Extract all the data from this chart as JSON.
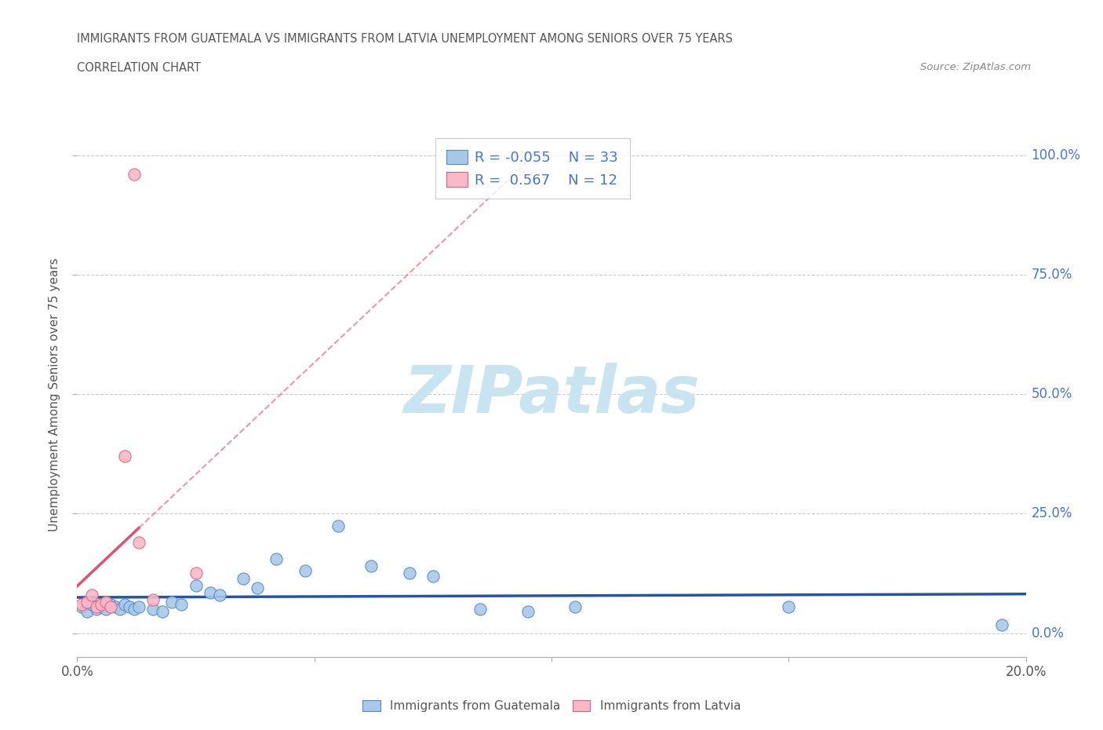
{
  "title_line1": "IMMIGRANTS FROM GUATEMALA VS IMMIGRANTS FROM LATVIA UNEMPLOYMENT AMONG SENIORS OVER 75 YEARS",
  "title_line2": "CORRELATION CHART",
  "source_text": "Source: ZipAtlas.com",
  "ylabel": "Unemployment Among Seniors over 75 years",
  "xlim": [
    0.0,
    0.2
  ],
  "ylim": [
    -0.05,
    1.05
  ],
  "xticks": [
    0.0,
    0.05,
    0.1,
    0.15,
    0.2
  ],
  "xtick_labels": [
    "0.0%",
    "",
    "",
    "",
    "20.0%"
  ],
  "ytick_labels_right": [
    "0.0%",
    "25.0%",
    "50.0%",
    "75.0%",
    "100.0%"
  ],
  "yticks": [
    0.0,
    0.25,
    0.5,
    0.75,
    1.0
  ],
  "guatemala_color": "#a8c8e8",
  "latvia_color": "#f8b8c8",
  "guatemala_edge": "#5588cc",
  "latvia_edge": "#e06080",
  "trendline_guatemala_color": "#2255aa",
  "trendline_latvia_color": "#e05070",
  "R_guatemala": -0.055,
  "N_guatemala": 33,
  "R_latvia": 0.567,
  "N_latvia": 12,
  "guatemala_x": [
    0.001,
    0.002,
    0.003,
    0.004,
    0.005,
    0.006,
    0.007,
    0.008,
    0.009,
    0.01,
    0.011,
    0.012,
    0.013,
    0.016,
    0.018,
    0.02,
    0.022,
    0.025,
    0.028,
    0.03,
    0.035,
    0.038,
    0.042,
    0.048,
    0.055,
    0.062,
    0.07,
    0.075,
    0.085,
    0.095,
    0.105,
    0.15,
    0.195
  ],
  "guatemala_y": [
    0.055,
    0.045,
    0.06,
    0.05,
    0.055,
    0.05,
    0.06,
    0.055,
    0.05,
    0.06,
    0.055,
    0.05,
    0.055,
    0.05,
    0.045,
    0.065,
    0.06,
    0.1,
    0.085,
    0.08,
    0.115,
    0.095,
    0.155,
    0.13,
    0.225,
    0.14,
    0.125,
    0.12,
    0.05,
    0.045,
    0.055,
    0.055,
    0.018
  ],
  "latvia_x": [
    0.001,
    0.002,
    0.003,
    0.004,
    0.005,
    0.006,
    0.007,
    0.01,
    0.012,
    0.013,
    0.016,
    0.025
  ],
  "latvia_y": [
    0.06,
    0.065,
    0.08,
    0.055,
    0.06,
    0.065,
    0.055,
    0.37,
    0.96,
    0.19,
    0.07,
    0.125
  ],
  "watermark_text": "ZIPatlas",
  "watermark_color": "#c8e4f0",
  "watermark_fontsize": 60,
  "background_color": "#ffffff",
  "grid_color": "#cccccc",
  "title_color": "#555555",
  "axis_label_color": "#555555",
  "legend_label_color": "#4477cc",
  "legend_fontsize": 13
}
